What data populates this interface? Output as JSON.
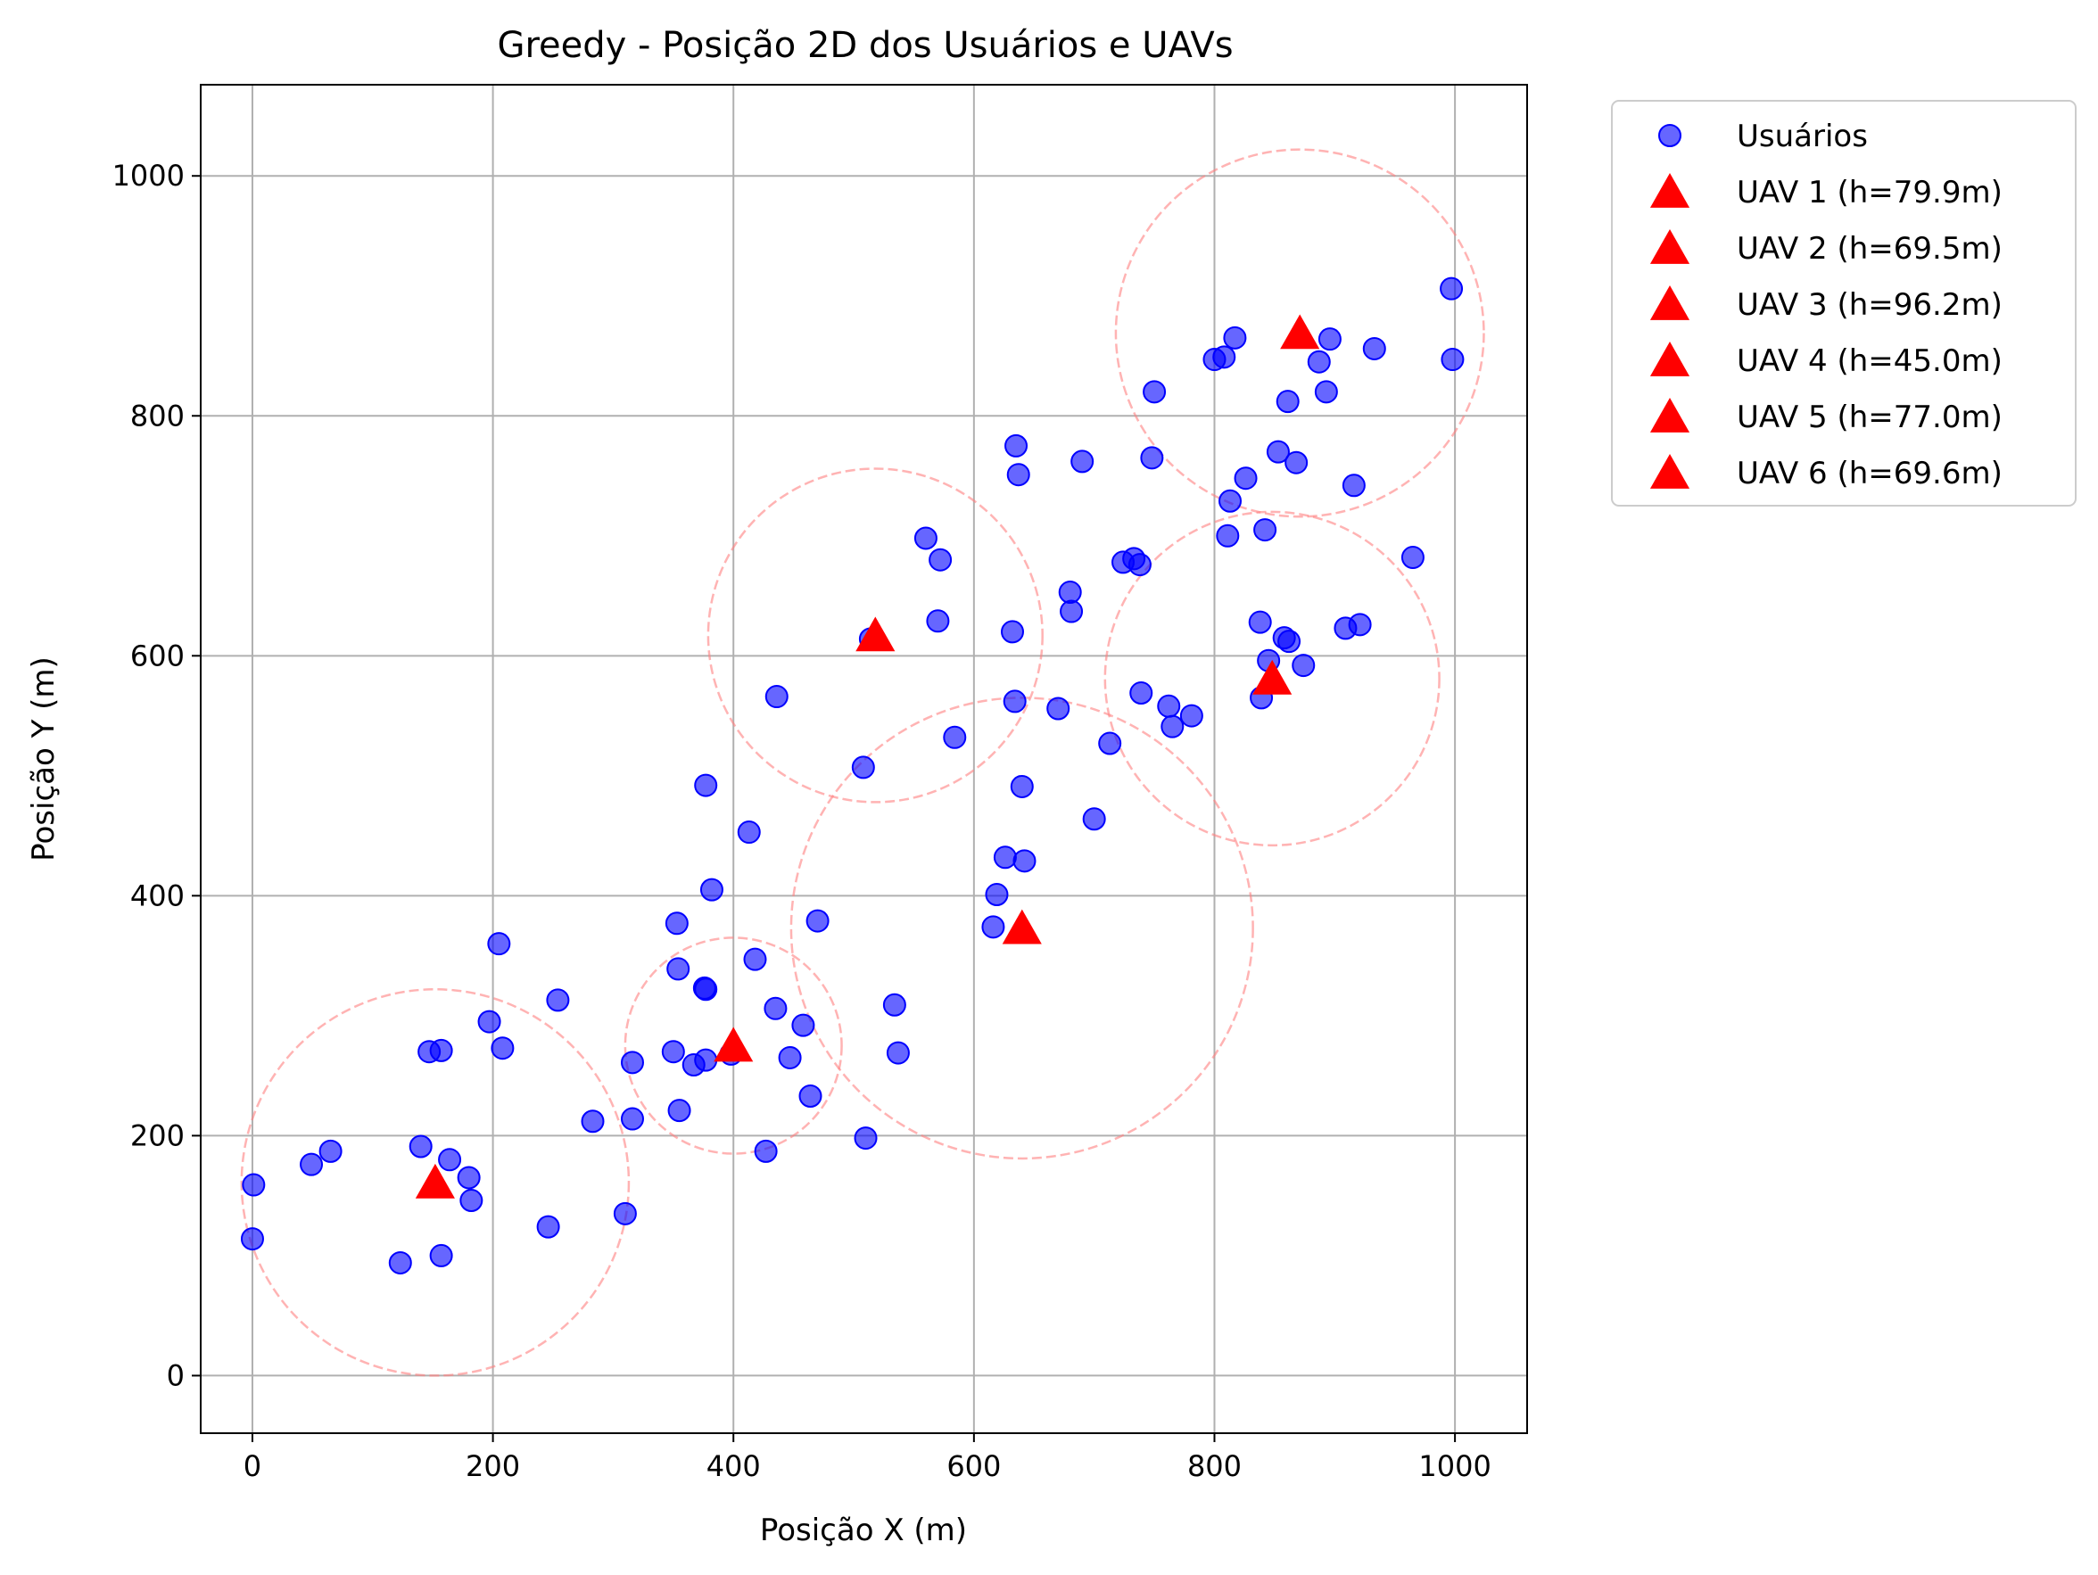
{
  "chart_data": {
    "type": "scatter",
    "title": "Greedy - Posição 2D dos Usuários e UAVs",
    "xlabel": "Posição X (m)",
    "ylabel": "Posição Y (m)",
    "xlim": [
      -43,
      1060
    ],
    "ylim": [
      -48,
      1076
    ],
    "xticks": [
      0,
      200,
      400,
      600,
      800,
      1000
    ],
    "yticks": [
      0,
      200,
      400,
      600,
      800,
      1000
    ],
    "grid": true,
    "legend_position": "outside-right-top",
    "colors": {
      "users": "#0000ff",
      "uav": "#ff0000",
      "coverage": "#ff8080"
    },
    "users": {
      "name": "Usuários",
      "points": [
        [
          1,
          159
        ],
        [
          0,
          114
        ],
        [
          49,
          176
        ],
        [
          65,
          187
        ],
        [
          123,
          94
        ],
        [
          140,
          191
        ],
        [
          147,
          270
        ],
        [
          157,
          271
        ],
        [
          157,
          100
        ],
        [
          164,
          180
        ],
        [
          180,
          165
        ],
        [
          182,
          146
        ],
        [
          197,
          295
        ],
        [
          205,
          360
        ],
        [
          208,
          273
        ],
        [
          246,
          124
        ],
        [
          254,
          313
        ],
        [
          283,
          212
        ],
        [
          310,
          135
        ],
        [
          316,
          261
        ],
        [
          316,
          214
        ],
        [
          350,
          270
        ],
        [
          353,
          377
        ],
        [
          354,
          339
        ],
        [
          355,
          221
        ],
        [
          367,
          259
        ],
        [
          376,
          323
        ],
        [
          377,
          322
        ],
        [
          377,
          263
        ],
        [
          377,
          492
        ],
        [
          382,
          405
        ],
        [
          398,
          268
        ],
        [
          413,
          453
        ],
        [
          418,
          347
        ],
        [
          427,
          187
        ],
        [
          435,
          306
        ],
        [
          436,
          566
        ],
        [
          447,
          265
        ],
        [
          458,
          292
        ],
        [
          464,
          233
        ],
        [
          470,
          379
        ],
        [
          508,
          507
        ],
        [
          510,
          198
        ],
        [
          514,
          614
        ],
        [
          534,
          309
        ],
        [
          537,
          269
        ],
        [
          560,
          698
        ],
        [
          570,
          629
        ],
        [
          572,
          680
        ],
        [
          584,
          532
        ],
        [
          616,
          374
        ],
        [
          619,
          401
        ],
        [
          626,
          432
        ],
        [
          632,
          620
        ],
        [
          634,
          562
        ],
        [
          635,
          775
        ],
        [
          637,
          751
        ],
        [
          640,
          491
        ],
        [
          642,
          429
        ],
        [
          670,
          556
        ],
        [
          680,
          653
        ],
        [
          681,
          637
        ],
        [
          690,
          762
        ],
        [
          700,
          464
        ],
        [
          713,
          527
        ],
        [
          724,
          678
        ],
        [
          733,
          681
        ],
        [
          738,
          676
        ],
        [
          739,
          569
        ],
        [
          748,
          765
        ],
        [
          750,
          820
        ],
        [
          762,
          558
        ],
        [
          765,
          541
        ],
        [
          781,
          550
        ],
        [
          800,
          847
        ],
        [
          808,
          849
        ],
        [
          811,
          700
        ],
        [
          813,
          729
        ],
        [
          817,
          865
        ],
        [
          826,
          748
        ],
        [
          838,
          628
        ],
        [
          839,
          565
        ],
        [
          842,
          705
        ],
        [
          845,
          596
        ],
        [
          853,
          770
        ],
        [
          858,
          615
        ],
        [
          861,
          812
        ],
        [
          862,
          612
        ],
        [
          868,
          761
        ],
        [
          874,
          592
        ],
        [
          887,
          845
        ],
        [
          893,
          820
        ],
        [
          896,
          864
        ],
        [
          909,
          623
        ],
        [
          916,
          742
        ],
        [
          921,
          626
        ],
        [
          933,
          856
        ],
        [
          965,
          682
        ],
        [
          997,
          906
        ],
        [
          998,
          847
        ]
      ]
    },
    "uavs": [
      {
        "name": "UAV 1 (h=79.9m)",
        "x": 152,
        "y": 161,
        "radius": 161
      },
      {
        "name": "UAV 2 (h=69.5m)",
        "x": 400,
        "y": 275,
        "radius": 90
      },
      {
        "name": "UAV 3 (h=96.2m)",
        "x": 640,
        "y": 373,
        "radius": 192
      },
      {
        "name": "UAV 4 (h=45.0m)",
        "x": 518,
        "y": 617,
        "radius": 139
      },
      {
        "name": "UAV 5 (h=77.0m)",
        "x": 848,
        "y": 581,
        "radius": 139
      },
      {
        "name": "UAV 6 (h=69.6m)",
        "x": 871,
        "y": 869,
        "radius": 153
      }
    ]
  }
}
